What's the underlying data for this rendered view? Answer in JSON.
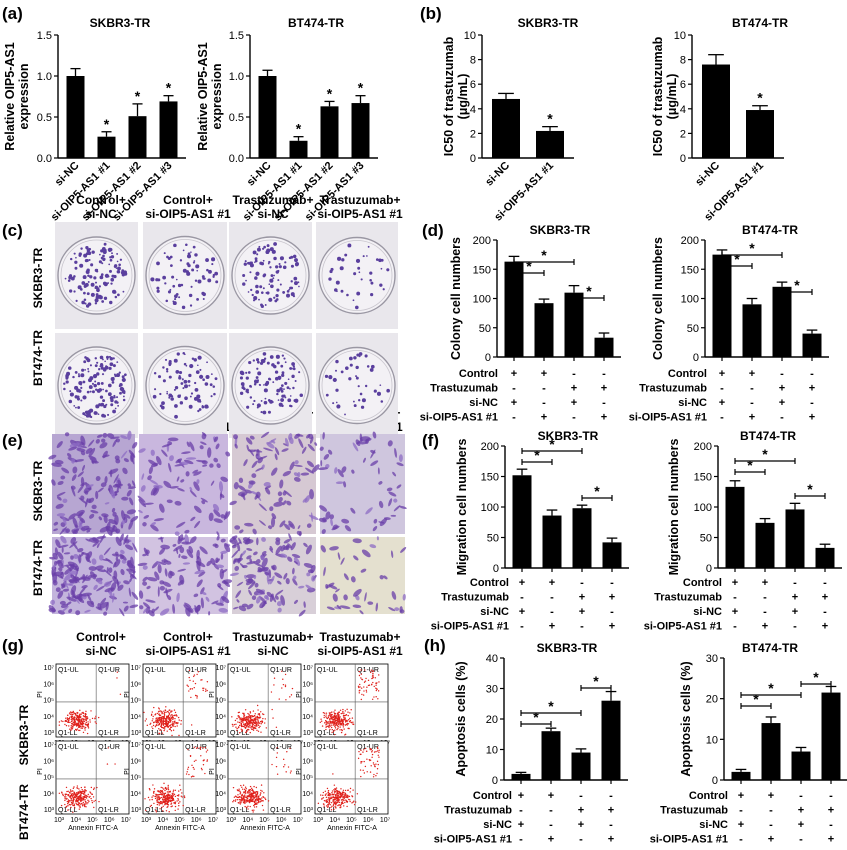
{
  "colors": {
    "bar": "#000000",
    "crystal_violet": "#5a3f9e",
    "transwell_bg": "#c9bfd9",
    "dot_red": "#e0201b"
  },
  "panels": {
    "a": {
      "label": "(a)"
    },
    "b": {
      "label": "(b)"
    },
    "c": {
      "label": "(c)",
      "row_labels": [
        "SKBR3-TR",
        "BT474-TR"
      ]
    },
    "d": {
      "label": "(d)"
    },
    "e": {
      "label": "(e)",
      "row_labels": [
        "SKBR3-TR",
        "BT474-TR"
      ]
    },
    "f": {
      "label": "(f)"
    },
    "g": {
      "label": "(g)",
      "row_labels": [
        "SKBR3-TR",
        "BT474-TR"
      ],
      "xaxis": "Annexin FITC-A",
      "yaxis": "PI",
      "quadrants": [
        "Q1-UL",
        "Q1-UR",
        "Q1-LL",
        "Q1-LR"
      ],
      "ticks": [
        "10³",
        "10⁴",
        "10⁵",
        "10⁶",
        "10⁷"
      ],
      "yticks": [
        "10⁷",
        "10⁶",
        "10⁵",
        "10⁴",
        "10³"
      ]
    },
    "h": {
      "label": "(h)"
    }
  },
  "conditions": {
    "rows": [
      "Control+",
      "Control+",
      "Trastuzumab+",
      "Trastuzumab+"
    ],
    "rows2": [
      "si-NC",
      "si-OIP5-AS1 #1",
      "si-NC",
      "si-OIP5-AS1 #1"
    ]
  },
  "sign_table": {
    "row_labels": [
      "Control",
      "Trastuzumab",
      "si-NC",
      "si-OIP5-AS1 #1"
    ],
    "signs": [
      [
        "+",
        "+",
        "-",
        "-"
      ],
      [
        "-",
        "-",
        "+",
        "+"
      ],
      [
        "+",
        "-",
        "+",
        "-"
      ],
      [
        "-",
        "+",
        "-",
        "+"
      ]
    ]
  },
  "chart_data": [
    {
      "id": "a1",
      "type": "bar",
      "title": "SKBR3-TR",
      "ylabel": "Relative OIP5-AS1 expression",
      "ylabel_lines": [
        "Relative OIP5-AS1",
        "expression"
      ],
      "categories": [
        "si-NC",
        "si-OIP5-AS1 #1",
        "si-OIP5-AS1 #2",
        "si-OIP5-AS1 #3"
      ],
      "values": [
        1.0,
        0.26,
        0.51,
        0.69
      ],
      "errors": [
        0.09,
        0.06,
        0.15,
        0.07
      ],
      "stars": [
        false,
        true,
        true,
        true
      ],
      "ylim": [
        0,
        1.5
      ],
      "yticks": [
        "0.0",
        "0.5",
        "1.0",
        "1.5"
      ]
    },
    {
      "id": "a2",
      "type": "bar",
      "title": "BT474-TR",
      "ylabel": "Relative OIP5-AS1 expression",
      "ylabel_lines": [
        "Relative OIP5-AS1",
        "expression"
      ],
      "categories": [
        "si-NC",
        "si-OIP5-AS1 #1",
        "si-OIP5-AS1 #2",
        "si-OIP5-AS1 #3"
      ],
      "values": [
        1.0,
        0.21,
        0.63,
        0.67
      ],
      "errors": [
        0.07,
        0.05,
        0.06,
        0.09
      ],
      "stars": [
        false,
        true,
        true,
        true
      ],
      "ylim": [
        0,
        1.5
      ],
      "yticks": [
        "0.0",
        "0.5",
        "1.0",
        "1.5"
      ]
    },
    {
      "id": "b1",
      "type": "bar",
      "title": "SKBR3-TR",
      "ylabel": "IC50 of trastuzumab (μg/mL)",
      "ylabel_lines": [
        "IC50 of trastuzumab",
        "(μg/mL)"
      ],
      "categories": [
        "si-NC",
        "si-OIP5-AS1 #1"
      ],
      "values": [
        4.8,
        2.2
      ],
      "errors": [
        0.45,
        0.35
      ],
      "stars": [
        false,
        true
      ],
      "ylim": [
        0,
        10
      ],
      "yticks": [
        "0",
        "2",
        "4",
        "6",
        "8",
        "10"
      ]
    },
    {
      "id": "b2",
      "type": "bar",
      "title": "BT474-TR",
      "ylabel": "IC50 of trastuzumab (μg/mL)",
      "ylabel_lines": [
        "IC50 of trastuzumab",
        "(μg/mL)"
      ],
      "categories": [
        "si-NC",
        "si-OIP5-AS1 #1"
      ],
      "values": [
        7.6,
        3.9
      ],
      "errors": [
        0.8,
        0.35
      ],
      "stars": [
        false,
        true
      ],
      "ylim": [
        0,
        10
      ],
      "yticks": [
        "0",
        "2",
        "4",
        "6",
        "8",
        "10"
      ]
    },
    {
      "id": "d1",
      "type": "bar",
      "title": "SKBR3-TR",
      "ylabel": "Colony cell numbers",
      "values": [
        163,
        92,
        110,
        33
      ],
      "errors": [
        9,
        7,
        12,
        8
      ],
      "ylim": [
        0,
        200
      ],
      "yticks": [
        "0",
        "50",
        "100",
        "150",
        "200"
      ]
    },
    {
      "id": "d2",
      "type": "bar",
      "title": "BT474-TR",
      "ylabel": "Colony cell numbers",
      "values": [
        175,
        90,
        120,
        40
      ],
      "errors": [
        8,
        10,
        8,
        6
      ],
      "ylim": [
        0,
        200
      ],
      "yticks": [
        "0",
        "50",
        "100",
        "150",
        "200"
      ]
    },
    {
      "id": "f1",
      "type": "bar",
      "title": "SKBR3-TR",
      "ylabel": "Migration cell numbers",
      "values": [
        152,
        86,
        98,
        42
      ],
      "errors": [
        10,
        9,
        5,
        7
      ],
      "ylim": [
        0,
        200
      ],
      "yticks": [
        "0",
        "50",
        "100",
        "150",
        "200"
      ]
    },
    {
      "id": "f2",
      "type": "bar",
      "title": "BT474-TR",
      "ylabel": "Migration cell numbers",
      "values": [
        133,
        74,
        96,
        33
      ],
      "errors": [
        10,
        7,
        10,
        6
      ],
      "ylim": [
        0,
        200
      ],
      "yticks": [
        "0",
        "50",
        "100",
        "150",
        "200"
      ]
    },
    {
      "id": "h1",
      "type": "bar",
      "title": "SKBR3-TR",
      "ylabel": "Apoptosis cells (%)",
      "values": [
        2.0,
        16.0,
        9.0,
        26.0
      ],
      "errors": [
        0.5,
        1.0,
        1.2,
        3.0
      ],
      "ylim": [
        0,
        40
      ],
      "yticks": [
        "0",
        "10",
        "20",
        "30",
        "40"
      ]
    },
    {
      "id": "h2",
      "type": "bar",
      "title": "BT474-TR",
      "ylabel": "Apoptosis cells (%)",
      "values": [
        2.0,
        14.0,
        7.0,
        21.5
      ],
      "errors": [
        0.6,
        1.5,
        1.0,
        1.5
      ],
      "ylim": [
        0,
        30
      ],
      "yticks": [
        "0",
        "10",
        "20",
        "30"
      ]
    }
  ]
}
